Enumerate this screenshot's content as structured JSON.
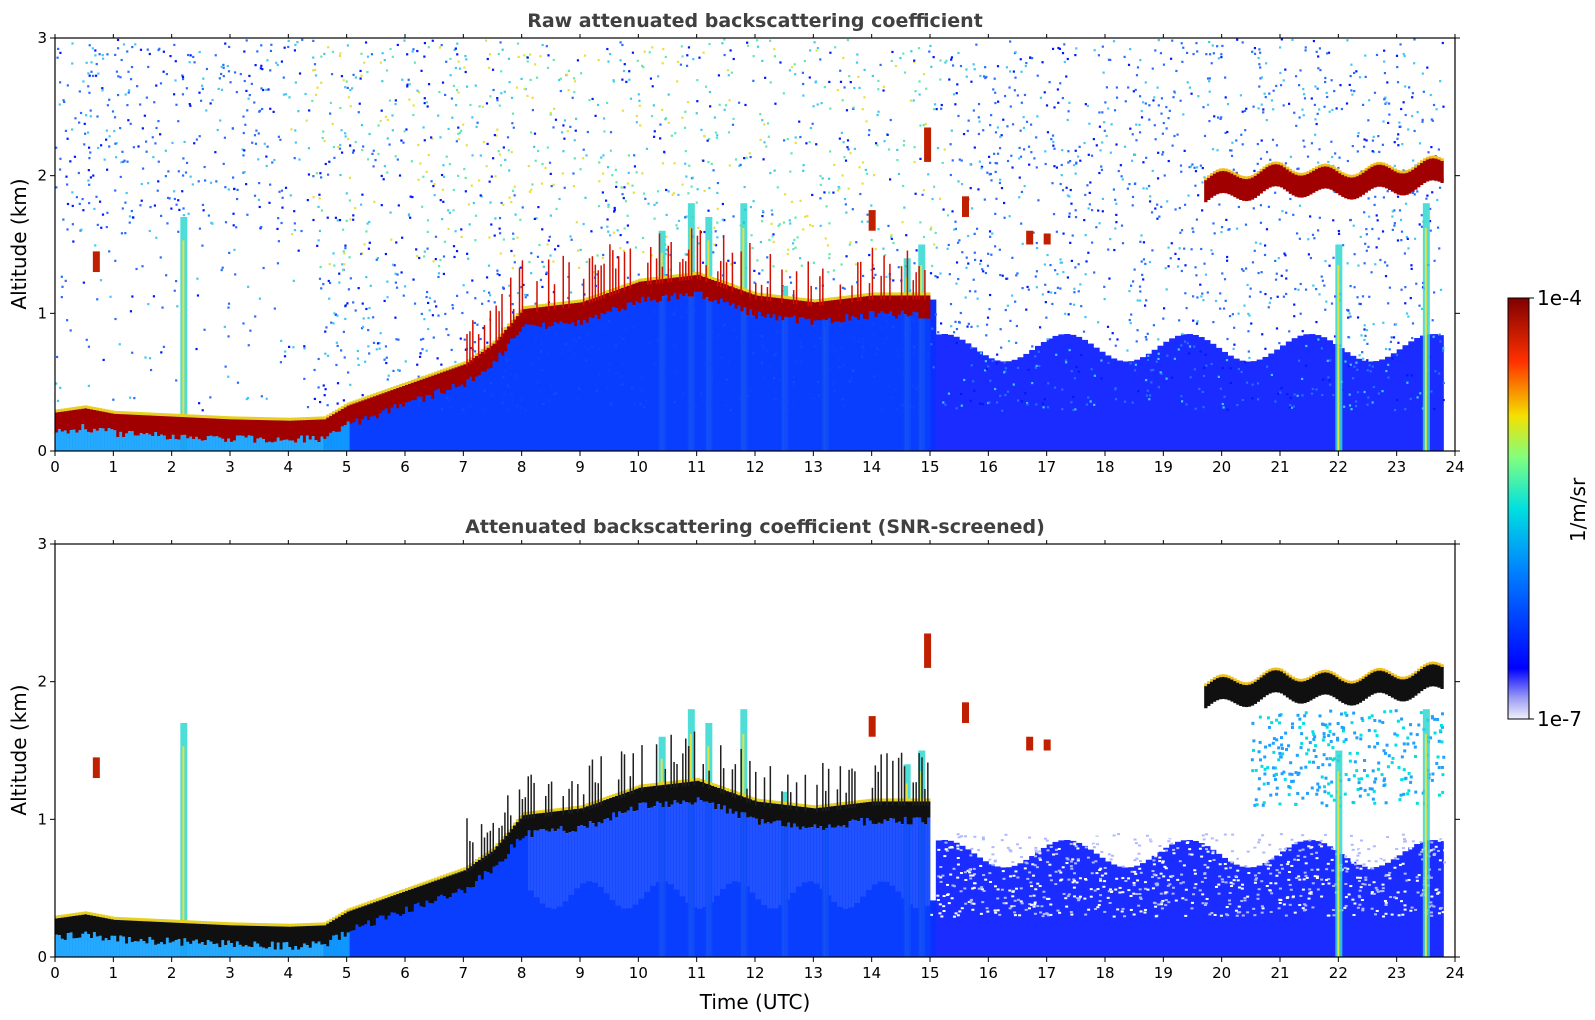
{
  "colors": {
    "background": "#ffffff",
    "title_text": "#404040",
    "jet_low": "#e6e6f7",
    "jet_blue": "#0000ff",
    "jet_cyan": "#00e0e0",
    "jet_yellow": "#f4e000",
    "jet_red": "#e00000",
    "jet_darkred": "#7f0000"
  },
  "colorbar": {
    "label": "1/m/sr",
    "min_label": "1e-7",
    "max_label": "1e-4",
    "scale": "log",
    "colormap": "jet"
  },
  "chart_data": [
    {
      "type": "heatmap",
      "title": "Raw attenuated backscattering coefficient",
      "xlabel": "",
      "ylabel": "Altitude (km)",
      "xlim": [
        0,
        24
      ],
      "ylim": [
        0,
        3
      ],
      "xticks": [
        "0",
        "1",
        "2",
        "3",
        "4",
        "5",
        "6",
        "7",
        "8",
        "9",
        "10",
        "11",
        "12",
        "13",
        "14",
        "15",
        "16",
        "17",
        "18",
        "19",
        "20",
        "21",
        "22",
        "23",
        "24"
      ],
      "yticks": [
        "0",
        "1",
        "2",
        "3"
      ],
      "layer_top_km": [
        [
          0,
          0.25
        ],
        [
          0.5,
          0.28
        ],
        [
          1,
          0.24
        ],
        [
          2,
          0.22
        ],
        [
          3,
          0.2
        ],
        [
          4,
          0.19
        ],
        [
          4.6,
          0.2
        ],
        [
          5,
          0.3
        ],
        [
          6,
          0.45
        ],
        [
          7,
          0.6
        ],
        [
          7.5,
          0.75
        ],
        [
          8,
          1.0
        ],
        [
          9,
          1.05
        ],
        [
          10,
          1.2
        ],
        [
          11,
          1.25
        ],
        [
          12,
          1.1
        ],
        [
          13,
          1.05
        ],
        [
          14,
          1.1
        ],
        [
          15,
          1.1
        ]
      ],
      "elevated_layer_km": [
        [
          19.7,
          1.88
        ],
        [
          20.5,
          1.92
        ],
        [
          21,
          1.95
        ],
        [
          22,
          1.92
        ],
        [
          23,
          1.95
        ],
        [
          23.8,
          2.0
        ]
      ],
      "value_range": [
        "1e-7",
        "1e-4"
      ]
    },
    {
      "type": "heatmap",
      "title": "Attenuated backscattering coefficient (SNR-screened)",
      "xlabel": "Time (UTC)",
      "ylabel": "Altitude (km)",
      "xlim": [
        0,
        24
      ],
      "ylim": [
        0,
        3
      ],
      "xticks": [
        "0",
        "1",
        "2",
        "3",
        "4",
        "5",
        "6",
        "7",
        "8",
        "9",
        "10",
        "11",
        "12",
        "13",
        "14",
        "15",
        "16",
        "17",
        "18",
        "19",
        "20",
        "21",
        "22",
        "23",
        "24"
      ],
      "yticks": [
        "0",
        "1",
        "2",
        "3"
      ],
      "layer_top_km": [
        [
          0,
          0.25
        ],
        [
          0.5,
          0.28
        ],
        [
          1,
          0.24
        ],
        [
          2,
          0.22
        ],
        [
          3,
          0.2
        ],
        [
          4,
          0.19
        ],
        [
          4.6,
          0.2
        ],
        [
          5,
          0.3
        ],
        [
          6,
          0.45
        ],
        [
          7,
          0.6
        ],
        [
          7.5,
          0.75
        ],
        [
          8,
          1.0
        ],
        [
          9,
          1.05
        ],
        [
          10,
          1.2
        ],
        [
          11,
          1.25
        ],
        [
          12,
          1.1
        ],
        [
          13,
          1.05
        ],
        [
          14,
          1.1
        ],
        [
          15,
          1.1
        ]
      ],
      "elevated_layer_km": [
        [
          19.7,
          1.88
        ],
        [
          20.5,
          1.92
        ],
        [
          21,
          1.95
        ],
        [
          22,
          1.92
        ],
        [
          23,
          1.95
        ],
        [
          23.8,
          2.0
        ]
      ],
      "value_range": [
        "1e-7",
        "1e-4"
      ]
    }
  ]
}
